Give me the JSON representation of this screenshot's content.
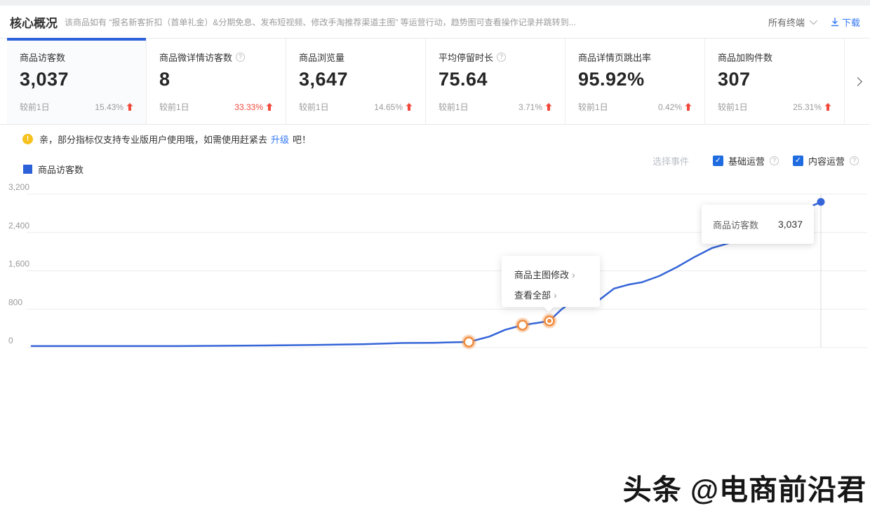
{
  "header": {
    "title": "核心概况",
    "description": "该商品如有 “报名新客折扣（首单礼金）&分期免息、发布短视频、修改手淘推荐渠道主图” 等运营行动，趋势图可查看操作记录并跳转到...",
    "terminal_filter": "所有终端",
    "download_label": "下载"
  },
  "cards": [
    {
      "title": "商品访客数",
      "value": "3,037",
      "compare_label": "较前1日",
      "change": "15.43%",
      "change_color": "#9b9b9b"
    },
    {
      "title": "商品微详情访客数",
      "value": "8",
      "compare_label": "较前1日",
      "change": "33.33%",
      "change_color": "#f0483b"
    },
    {
      "title": "商品浏览量",
      "value": "3,647",
      "compare_label": "较前1日",
      "change": "14.65%",
      "change_color": "#9b9b9b"
    },
    {
      "title": "平均停留时长",
      "value": "75.64",
      "compare_label": "较前1日",
      "change": "3.71%",
      "change_color": "#9b9b9b"
    },
    {
      "title": "商品详情页跳出率",
      "value": "95.92%",
      "compare_label": "较前1日",
      "change": "0.42%",
      "change_color": "#9b9b9b"
    },
    {
      "title": "商品加购件数",
      "value": "307",
      "compare_label": "较前1日",
      "change": "25.31%",
      "change_color": "#9b9b9b"
    }
  ],
  "notice": {
    "text_before": "亲，部分指标仅支持专业版用户使用哦，如需使用赶紧去",
    "link": "升级",
    "text_after": "吧！"
  },
  "chart_controls": {
    "select_event_label": "选择事件",
    "checkboxes": [
      {
        "label": "基础运营",
        "checked": true
      },
      {
        "label": "内容运营",
        "checked": true
      }
    ]
  },
  "chart_data": {
    "type": "line",
    "legend": [
      "商品访客数"
    ],
    "series": [
      {
        "name": "商品访客数",
        "color": "#3565d8",
        "points": [
          [
            0,
            30
          ],
          [
            0.09,
            30
          ],
          [
            0.18,
            30
          ],
          [
            0.27,
            40
          ],
          [
            0.36,
            55
          ],
          [
            0.42,
            70
          ],
          [
            0.47,
            95
          ],
          [
            0.51,
            100
          ],
          [
            0.554,
            117
          ],
          [
            0.58,
            230
          ],
          [
            0.6,
            370
          ],
          [
            0.622,
            468
          ],
          [
            0.64,
            512
          ],
          [
            0.656,
            555
          ],
          [
            0.671,
            790
          ],
          [
            0.684,
            950
          ],
          [
            0.702,
            995
          ],
          [
            0.717,
            965
          ],
          [
            0.738,
            1230
          ],
          [
            0.757,
            1315
          ],
          [
            0.773,
            1360
          ],
          [
            0.795,
            1490
          ],
          [
            0.818,
            1680
          ],
          [
            0.84,
            1890
          ],
          [
            0.862,
            2075
          ],
          [
            0.884,
            2180
          ],
          [
            0.911,
            2280
          ],
          [
            0.938,
            2485
          ],
          [
            0.964,
            2735
          ],
          [
            0.987,
            2940
          ],
          [
            1,
            3037
          ]
        ]
      }
    ],
    "ylim": [
      0,
      3200
    ],
    "yticks": [
      0,
      800,
      1600,
      2400,
      3200
    ],
    "ytick_labels": [
      "0",
      "800",
      "1,600",
      "2,400",
      "3,200"
    ],
    "grid": true,
    "legend_position": "top-left",
    "event_markers": [
      {
        "x": 0.554,
        "value": 117
      },
      {
        "x": 0.622,
        "value": 468
      },
      {
        "x": 0.656,
        "value": 555,
        "active": true
      }
    ],
    "end_point": {
      "value": 3037
    }
  },
  "tooltip": {
    "label": "商品访客数",
    "value": "3,037"
  },
  "event_popup": {
    "items": [
      "商品主图修改",
      "查看全部"
    ]
  },
  "watermark": "头条 @电商前沿君",
  "ui_colors": {
    "accent_blue": "#2e62dd",
    "link_blue": "#3478f6",
    "line_blue": "#3565d8",
    "up_red": "#f0483b",
    "event_orange": "#f08c3e",
    "notice_yellow": "#f7c21e"
  }
}
